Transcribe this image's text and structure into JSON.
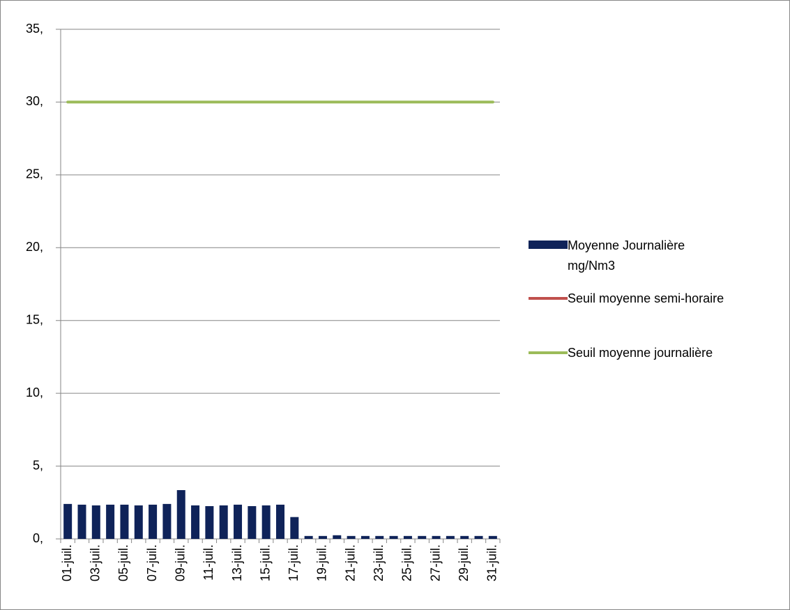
{
  "chart_data": {
    "type": "bar-line",
    "categories": [
      "01-juil.",
      null,
      "03-juil.",
      null,
      "05-juil.",
      null,
      "07-juil.",
      null,
      "09-juil.",
      null,
      "11-juil.",
      null,
      "13-juil.",
      null,
      "15-juil.",
      null,
      "17-juil.",
      null,
      "19-juil.",
      null,
      "21-juil.",
      null,
      "23-juil.",
      null,
      "25-juil.",
      null,
      "27-juil.",
      null,
      "29-juil.",
      null,
      "31-juil."
    ],
    "series": [
      {
        "name": "Moyenne Journalière mg/Nm3",
        "type": "bar",
        "color": "#0f2359",
        "values": [
          2.4,
          2.35,
          2.3,
          2.35,
          2.35,
          2.3,
          2.35,
          2.4,
          3.35,
          2.3,
          2.25,
          2.3,
          2.35,
          2.25,
          2.3,
          2.35,
          1.5,
          0.2,
          0.2,
          0.25,
          0.2,
          0.2,
          0.2,
          0.2,
          0.2,
          0.2,
          0.2,
          0.2,
          0.2,
          0.2,
          0.2
        ]
      },
      {
        "name": "Seuil moyenne semi-horaire",
        "type": "line",
        "color": "#c0504d",
        "values": [
          null,
          null,
          null,
          null,
          null,
          null,
          null,
          null,
          null,
          null,
          null,
          null,
          null,
          null,
          null,
          null,
          null,
          null,
          null,
          null,
          null,
          null,
          null,
          null,
          null,
          null,
          null,
          null,
          null,
          null,
          null
        ]
      },
      {
        "name": "Seuil moyenne journalière",
        "type": "line",
        "color": "#9bbb59",
        "values": [
          30,
          30,
          30,
          30,
          30,
          30,
          30,
          30,
          30,
          30,
          30,
          30,
          30,
          30,
          30,
          30,
          30,
          30,
          30,
          30,
          30,
          30,
          30,
          30,
          30,
          30,
          30,
          30,
          30,
          30,
          30
        ]
      }
    ],
    "ylim": [
      0,
      35
    ],
    "yticks": [
      {
        "value": 0,
        "label": "0,"
      },
      {
        "value": 5,
        "label": "5,"
      },
      {
        "value": 10,
        "label": "10,"
      },
      {
        "value": 15,
        "label": "15,"
      },
      {
        "value": 20,
        "label": "20,"
      },
      {
        "value": 25,
        "label": "25,"
      },
      {
        "value": 30,
        "label": "30,"
      },
      {
        "value": 35,
        "label": "35,"
      }
    ],
    "grid": true,
    "legend": "right"
  }
}
